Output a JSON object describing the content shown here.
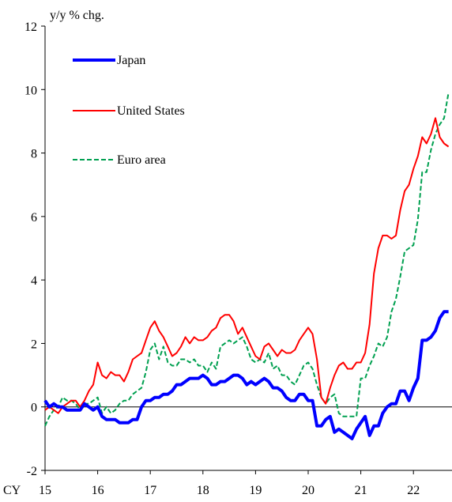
{
  "chart_data": {
    "type": "line",
    "ylabel": "y/y % chg.",
    "ylim": [
      -2,
      12
    ],
    "y_ticks": [
      "12",
      "10",
      "8",
      "6",
      "4",
      "2",
      "0",
      "-2"
    ],
    "x_prefix": "CY",
    "x_ticks": [
      "15",
      "16",
      "17",
      "18",
      "19",
      "20",
      "21",
      "22"
    ],
    "x_start": "2015-01",
    "x_end": "2022-09",
    "zero_line": true,
    "grid": false,
    "legend": {
      "placement": "top-left"
    },
    "series": [
      {
        "name": "Japan",
        "color": "#0000ff",
        "style": "solid",
        "width": "thick",
        "x": [
          "2015-01",
          "2015-02",
          "2015-03",
          "2015-04",
          "2015-05",
          "2015-06",
          "2015-07",
          "2015-08",
          "2015-09",
          "2015-10",
          "2015-11",
          "2015-12",
          "2016-01",
          "2016-02",
          "2016-03",
          "2016-04",
          "2016-05",
          "2016-06",
          "2016-07",
          "2016-08",
          "2016-09",
          "2016-10",
          "2016-11",
          "2016-12",
          "2017-01",
          "2017-02",
          "2017-03",
          "2017-04",
          "2017-05",
          "2017-06",
          "2017-07",
          "2017-08",
          "2017-09",
          "2017-10",
          "2017-11",
          "2017-12",
          "2018-01",
          "2018-02",
          "2018-03",
          "2018-04",
          "2018-05",
          "2018-06",
          "2018-07",
          "2018-08",
          "2018-09",
          "2018-10",
          "2018-11",
          "2018-12",
          "2019-01",
          "2019-02",
          "2019-03",
          "2019-04",
          "2019-05",
          "2019-06",
          "2019-07",
          "2019-08",
          "2019-09",
          "2019-10",
          "2019-11",
          "2019-12",
          "2020-01",
          "2020-02",
          "2020-03",
          "2020-04",
          "2020-05",
          "2020-06",
          "2020-07",
          "2020-08",
          "2020-09",
          "2020-10",
          "2020-11",
          "2020-12",
          "2021-01",
          "2021-02",
          "2021-03",
          "2021-04",
          "2021-05",
          "2021-06",
          "2021-07",
          "2021-08",
          "2021-09",
          "2021-10",
          "2021-11",
          "2021-12",
          "2022-01",
          "2022-02",
          "2022-03",
          "2022-04",
          "2022-05",
          "2022-06",
          "2022-07",
          "2022-08",
          "2022-09"
        ],
        "y": [
          0.2,
          0.0,
          0.1,
          0.0,
          0.0,
          -0.1,
          -0.1,
          -0.1,
          -0.1,
          0.1,
          0.0,
          -0.1,
          0.0,
          -0.3,
          -0.4,
          -0.4,
          -0.4,
          -0.5,
          -0.5,
          -0.5,
          -0.4,
          -0.4,
          0.0,
          0.2,
          0.2,
          0.3,
          0.3,
          0.4,
          0.4,
          0.5,
          0.7,
          0.7,
          0.8,
          0.9,
          0.9,
          0.9,
          1.0,
          0.9,
          0.7,
          0.7,
          0.8,
          0.8,
          0.9,
          1.0,
          1.0,
          0.9,
          0.7,
          0.8,
          0.7,
          0.8,
          0.9,
          0.8,
          0.6,
          0.6,
          0.5,
          0.3,
          0.2,
          0.2,
          0.4,
          0.4,
          0.2,
          0.2,
          -0.6,
          -0.6,
          -0.4,
          -0.3,
          -0.8,
          -0.7,
          -0.8,
          -0.9,
          -1.0,
          -0.7,
          -0.5,
          -0.3,
          -0.9,
          -0.6,
          -0.6,
          -0.2,
          0.0,
          0.1,
          0.1,
          0.5,
          0.5,
          0.2,
          0.6,
          0.9,
          2.1,
          2.1,
          2.2,
          2.4,
          2.8,
          3.0,
          3.0
        ]
      },
      {
        "name": "United States",
        "color": "#ff0000",
        "style": "solid",
        "width": "thin",
        "x": [
          "2015-01",
          "2015-02",
          "2015-03",
          "2015-04",
          "2015-05",
          "2015-06",
          "2015-07",
          "2015-08",
          "2015-09",
          "2015-10",
          "2015-11",
          "2015-12",
          "2016-01",
          "2016-02",
          "2016-03",
          "2016-04",
          "2016-05",
          "2016-06",
          "2016-07",
          "2016-08",
          "2016-09",
          "2016-10",
          "2016-11",
          "2016-12",
          "2017-01",
          "2017-02",
          "2017-03",
          "2017-04",
          "2017-05",
          "2017-06",
          "2017-07",
          "2017-08",
          "2017-09",
          "2017-10",
          "2017-11",
          "2017-12",
          "2018-01",
          "2018-02",
          "2018-03",
          "2018-04",
          "2018-05",
          "2018-06",
          "2018-07",
          "2018-08",
          "2018-09",
          "2018-10",
          "2018-11",
          "2018-12",
          "2019-01",
          "2019-02",
          "2019-03",
          "2019-04",
          "2019-05",
          "2019-06",
          "2019-07",
          "2019-08",
          "2019-09",
          "2019-10",
          "2019-11",
          "2019-12",
          "2020-01",
          "2020-02",
          "2020-03",
          "2020-04",
          "2020-05",
          "2020-06",
          "2020-07",
          "2020-08",
          "2020-09",
          "2020-10",
          "2020-11",
          "2020-12",
          "2021-01",
          "2021-02",
          "2021-03",
          "2021-04",
          "2021-05",
          "2021-06",
          "2021-07",
          "2021-08",
          "2021-09",
          "2021-10",
          "2021-11",
          "2021-12",
          "2022-01",
          "2022-02",
          "2022-03",
          "2022-04",
          "2022-05",
          "2022-06",
          "2022-07",
          "2022-08",
          "2022-09"
        ],
        "y": [
          -0.1,
          0.0,
          -0.1,
          -0.2,
          0.0,
          0.1,
          0.2,
          0.2,
          0.0,
          0.2,
          0.5,
          0.7,
          1.4,
          1.0,
          0.9,
          1.1,
          1.0,
          1.0,
          0.8,
          1.1,
          1.5,
          1.6,
          1.7,
          2.1,
          2.5,
          2.7,
          2.4,
          2.2,
          1.9,
          1.6,
          1.7,
          1.9,
          2.2,
          2.0,
          2.2,
          2.1,
          2.1,
          2.2,
          2.4,
          2.5,
          2.8,
          2.9,
          2.9,
          2.7,
          2.3,
          2.5,
          2.2,
          1.9,
          1.6,
          1.5,
          1.9,
          2.0,
          1.8,
          1.6,
          1.8,
          1.7,
          1.7,
          1.8,
          2.1,
          2.3,
          2.5,
          2.3,
          1.5,
          0.3,
          0.1,
          0.6,
          1.0,
          1.3,
          1.4,
          1.2,
          1.2,
          1.4,
          1.4,
          1.7,
          2.6,
          4.2,
          5.0,
          5.4,
          5.4,
          5.3,
          5.4,
          6.2,
          6.8,
          7.0,
          7.5,
          7.9,
          8.5,
          8.3,
          8.6,
          9.1,
          8.5,
          8.3,
          8.2
        ]
      },
      {
        "name": "Euro area",
        "color": "#00a050",
        "style": "dashed",
        "width": "thin",
        "x": [
          "2015-01",
          "2015-02",
          "2015-03",
          "2015-04",
          "2015-05",
          "2015-06",
          "2015-07",
          "2015-08",
          "2015-09",
          "2015-10",
          "2015-11",
          "2015-12",
          "2016-01",
          "2016-02",
          "2016-03",
          "2016-04",
          "2016-05",
          "2016-06",
          "2016-07",
          "2016-08",
          "2016-09",
          "2016-10",
          "2016-11",
          "2016-12",
          "2017-01",
          "2017-02",
          "2017-03",
          "2017-04",
          "2017-05",
          "2017-06",
          "2017-07",
          "2017-08",
          "2017-09",
          "2017-10",
          "2017-11",
          "2017-12",
          "2018-01",
          "2018-02",
          "2018-03",
          "2018-04",
          "2018-05",
          "2018-06",
          "2018-07",
          "2018-08",
          "2018-09",
          "2018-10",
          "2018-11",
          "2018-12",
          "2019-01",
          "2019-02",
          "2019-03",
          "2019-04",
          "2019-05",
          "2019-06",
          "2019-07",
          "2019-08",
          "2019-09",
          "2019-10",
          "2019-11",
          "2019-12",
          "2020-01",
          "2020-02",
          "2020-03",
          "2020-04",
          "2020-05",
          "2020-06",
          "2020-07",
          "2020-08",
          "2020-09",
          "2020-10",
          "2020-11",
          "2020-12",
          "2021-01",
          "2021-02",
          "2021-03",
          "2021-04",
          "2021-05",
          "2021-06",
          "2021-07",
          "2021-08",
          "2021-09",
          "2021-10",
          "2021-11",
          "2021-12",
          "2022-01",
          "2022-02",
          "2022-03",
          "2022-04",
          "2022-05",
          "2022-06",
          "2022-07",
          "2022-08",
          "2022-09"
        ],
        "y": [
          -0.6,
          -0.3,
          -0.1,
          0.0,
          0.3,
          0.2,
          0.2,
          0.1,
          -0.1,
          0.1,
          0.1,
          0.2,
          0.3,
          -0.2,
          0.0,
          -0.2,
          -0.1,
          0.1,
          0.2,
          0.2,
          0.4,
          0.5,
          0.6,
          1.1,
          1.8,
          2.0,
          1.5,
          1.9,
          1.4,
          1.3,
          1.3,
          1.5,
          1.5,
          1.4,
          1.5,
          1.3,
          1.3,
          1.1,
          1.4,
          1.2,
          1.9,
          2.0,
          2.1,
          2.0,
          2.1,
          2.2,
          1.9,
          1.5,
          1.4,
          1.5,
          1.4,
          1.7,
          1.2,
          1.3,
          1.0,
          1.0,
          0.8,
          0.7,
          1.0,
          1.3,
          1.4,
          1.2,
          0.7,
          0.3,
          0.1,
          0.3,
          0.4,
          -0.2,
          -0.3,
          -0.3,
          -0.3,
          -0.3,
          0.9,
          0.9,
          1.3,
          1.6,
          2.0,
          1.9,
          2.2,
          3.0,
          3.4,
          4.1,
          4.9,
          5.0,
          5.1,
          5.9,
          7.4,
          7.4,
          8.1,
          8.6,
          8.9,
          9.1,
          9.9
        ]
      }
    ]
  }
}
